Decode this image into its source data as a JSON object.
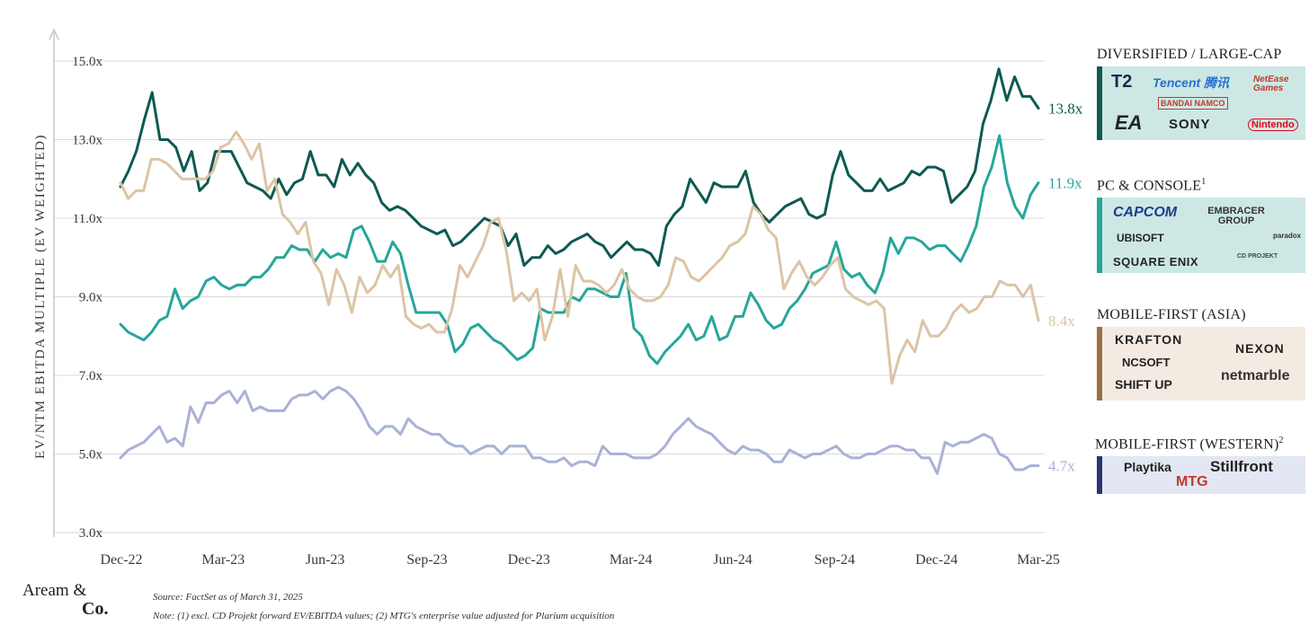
{
  "chart_data": {
    "type": "line",
    "title": "",
    "ylabel": "EV/NTM EBITDA MULTIPLE (EV WEIGHTED)",
    "xlabel": "",
    "ylim": [
      3.0,
      15.0
    ],
    "yticks": [
      "15.0x",
      "13.0x",
      "11.0x",
      "9.0x",
      "7.0x",
      "5.0x",
      "3.0x"
    ],
    "ytick_values": [
      15,
      13,
      11,
      9,
      7,
      5,
      3
    ],
    "xticks": [
      "Dec-22",
      "Mar-23",
      "Jun-23",
      "Sep-23",
      "Dec-23",
      "Mar-24",
      "Jun-24",
      "Sep-24",
      "Dec-24",
      "Mar-25"
    ],
    "grid": "horizontal",
    "series": [
      {
        "name": "DIVERSIFIED / LARGE-CAP",
        "color": "#0e5a52",
        "end_label": "13.8x",
        "values": [
          11.8,
          12.2,
          12.7,
          13.5,
          14.2,
          13.0,
          13.0,
          12.8,
          12.2,
          12.7,
          11.7,
          11.9,
          12.7,
          12.7,
          12.7,
          12.3,
          11.9,
          11.8,
          11.7,
          11.5,
          12.0,
          11.6,
          11.9,
          12.0,
          12.7,
          12.1,
          12.1,
          11.8,
          12.5,
          12.1,
          12.4,
          12.1,
          11.9,
          11.4,
          11.2,
          11.3,
          11.2,
          11.0,
          10.8,
          10.7,
          10.6,
          10.7,
          10.3,
          10.4,
          10.6,
          10.8,
          11.0,
          10.9,
          10.8,
          10.3,
          10.6,
          9.8,
          10.0,
          10.0,
          10.3,
          10.1,
          10.2,
          10.4,
          10.5,
          10.6,
          10.4,
          10.3,
          10.0,
          10.2,
          10.4,
          10.2,
          10.2,
          10.1,
          9.8,
          10.8,
          11.1,
          11.3,
          12.0,
          11.7,
          11.4,
          11.9,
          11.8,
          11.8,
          11.8,
          12.2,
          11.4,
          11.1,
          10.9,
          11.1,
          11.3,
          11.4,
          11.5,
          11.1,
          11.0,
          11.1,
          12.1,
          12.7,
          12.1,
          11.9,
          11.7,
          11.7,
          12.0,
          11.7,
          11.8,
          11.9,
          12.2,
          12.1,
          12.3,
          12.3,
          12.2,
          11.4,
          11.6,
          11.8,
          12.2,
          13.4,
          14.0,
          14.8,
          14.0,
          14.6,
          14.1,
          14.1,
          13.8
        ]
      },
      {
        "name": "PC & CONSOLE",
        "color": "#26a69a",
        "end_label": "11.9x",
        "values": [
          8.3,
          8.1,
          8.0,
          7.9,
          8.1,
          8.4,
          8.5,
          9.2,
          8.7,
          8.9,
          9.0,
          9.4,
          9.5,
          9.3,
          9.2,
          9.3,
          9.3,
          9.5,
          9.5,
          9.7,
          10.0,
          10.0,
          10.3,
          10.2,
          10.2,
          9.9,
          10.2,
          10.0,
          10.1,
          10.0,
          10.7,
          10.8,
          10.4,
          9.9,
          9.9,
          10.4,
          10.1,
          9.3,
          8.6,
          8.6,
          8.6,
          8.6,
          8.3,
          7.6,
          7.8,
          8.2,
          8.3,
          8.1,
          7.9,
          7.8,
          7.6,
          7.4,
          7.5,
          7.7,
          8.7,
          8.6,
          8.6,
          8.6,
          9.0,
          8.9,
          9.2,
          9.2,
          9.1,
          9.0,
          9.0,
          9.6,
          8.2,
          8.0,
          7.5,
          7.3,
          7.6,
          7.8,
          8.0,
          8.3,
          7.9,
          8.0,
          8.5,
          7.9,
          8.0,
          8.5,
          8.5,
          9.1,
          8.8,
          8.4,
          8.2,
          8.3,
          8.7,
          8.9,
          9.2,
          9.6,
          9.7,
          9.8,
          10.4,
          9.7,
          9.5,
          9.6,
          9.3,
          9.1,
          9.6,
          10.5,
          10.1,
          10.5,
          10.5,
          10.4,
          10.2,
          10.3,
          10.3,
          10.1,
          9.9,
          10.3,
          10.8,
          11.8,
          12.3,
          13.1,
          11.9,
          11.3,
          11.0,
          11.6,
          11.9
        ]
      },
      {
        "name": "MOBILE-FIRST (ASIA)",
        "color": "#dcc4a6",
        "end_label": "8.4x",
        "values": [
          11.9,
          11.5,
          11.7,
          11.7,
          12.5,
          12.5,
          12.4,
          12.2,
          12.0,
          12.0,
          12.0,
          12.0,
          12.2,
          12.8,
          12.9,
          13.2,
          12.9,
          12.5,
          12.9,
          11.7,
          12.0,
          11.1,
          10.9,
          10.6,
          10.9,
          9.9,
          9.6,
          8.8,
          9.7,
          9.3,
          8.6,
          9.5,
          9.1,
          9.3,
          9.8,
          9.5,
          9.8,
          8.5,
          8.3,
          8.2,
          8.3,
          8.1,
          8.1,
          8.7,
          9.8,
          9.5,
          9.9,
          10.3,
          10.9,
          11.0,
          10.2,
          8.9,
          9.1,
          8.9,
          9.2,
          7.9,
          8.5,
          9.7,
          8.5,
          9.8,
          9.4,
          9.4,
          9.3,
          9.1,
          9.3,
          9.7,
          9.2,
          9.0,
          8.9,
          8.9,
          9.0,
          9.3,
          10.0,
          9.9,
          9.5,
          9.4,
          9.6,
          9.8,
          10.0,
          10.3,
          10.4,
          10.6,
          11.3,
          11.1,
          10.7,
          10.5,
          9.2,
          9.6,
          9.9,
          9.5,
          9.3,
          9.5,
          9.8,
          10.0,
          9.2,
          9.0,
          8.9,
          8.8,
          8.9,
          8.7,
          6.8,
          7.5,
          7.9,
          7.6,
          8.4,
          8.0,
          8.0,
          8.2,
          8.6,
          8.8,
          8.6,
          8.7,
          9.0,
          9.0,
          9.4,
          9.3,
          9.3,
          9.0,
          9.3,
          8.4
        ]
      },
      {
        "name": "MOBILE-FIRST (WESTERN)",
        "color": "#a9b1d6",
        "end_label": "4.7x",
        "values": [
          4.9,
          5.1,
          5.2,
          5.3,
          5.5,
          5.7,
          5.3,
          5.4,
          5.2,
          6.2,
          5.8,
          6.3,
          6.3,
          6.5,
          6.6,
          6.3,
          6.6,
          6.1,
          6.2,
          6.1,
          6.1,
          6.1,
          6.4,
          6.5,
          6.5,
          6.6,
          6.4,
          6.6,
          6.7,
          6.6,
          6.4,
          6.1,
          5.7,
          5.5,
          5.7,
          5.7,
          5.5,
          5.9,
          5.7,
          5.6,
          5.5,
          5.5,
          5.3,
          5.2,
          5.2,
          5.0,
          5.1,
          5.2,
          5.2,
          5.0,
          5.2,
          5.2,
          5.2,
          4.9,
          4.9,
          4.8,
          4.8,
          4.9,
          4.7,
          4.8,
          4.8,
          4.7,
          5.2,
          5.0,
          5.0,
          5.0,
          4.9,
          4.9,
          4.9,
          5.0,
          5.2,
          5.5,
          5.7,
          5.9,
          5.7,
          5.6,
          5.5,
          5.3,
          5.1,
          5.0,
          5.2,
          5.1,
          5.1,
          5.0,
          4.8,
          4.8,
          5.1,
          5.0,
          4.9,
          5.0,
          5.0,
          5.1,
          5.2,
          5.0,
          4.9,
          4.9,
          5.0,
          5.0,
          5.1,
          5.2,
          5.2,
          5.1,
          5.1,
          4.9,
          4.9,
          4.5,
          5.3,
          5.2,
          5.3,
          5.3,
          5.4,
          5.5,
          5.4,
          5.0,
          4.9,
          4.6,
          4.6,
          4.7,
          4.7
        ]
      }
    ]
  },
  "panels": [
    {
      "title": "DIVERSIFIED / LARGE-CAP",
      "sup": "",
      "bg": "#cde8e4",
      "edge": "#0e5a52",
      "logos": [
        {
          "text": "T2",
          "color": "#1c2a4a",
          "size": 20
        },
        {
          "text": "Tencent 腾讯",
          "color": "#2a6fd1",
          "size": 14
        },
        {
          "text": "NetEase Games",
          "color": "#c0392b",
          "size": 10
        },
        {
          "text": "BANDAI NAMCO",
          "color": "#c0392b",
          "size": 9
        },
        {
          "text": "EA",
          "color": "#222222",
          "size": 22
        },
        {
          "text": "SONY",
          "color": "#222222",
          "size": 15
        },
        {
          "text": "Nintendo",
          "color": "#e3001b",
          "size": 11
        }
      ]
    },
    {
      "title": "PC & CONSOLE",
      "sup": "1",
      "bg": "#cde8e4",
      "edge": "#26a69a",
      "logos": [
        {
          "text": "CAPCOM",
          "color": "#1e3c8c",
          "size": 16
        },
        {
          "text": "EMBRACER GROUP",
          "color": "#333333",
          "size": 11
        },
        {
          "text": "paradox",
          "color": "#333333",
          "size": 8
        },
        {
          "text": "UBISOFT",
          "color": "#222222",
          "size": 12
        },
        {
          "text": "SQUARE ENIX",
          "color": "#222222",
          "size": 13
        },
        {
          "text": "CD PROJEKT",
          "color": "#444444",
          "size": 7
        }
      ]
    },
    {
      "title": "MOBILE-FIRST (ASIA)",
      "sup": "",
      "bg": "#f3ebe1",
      "edge": "#9b6f46",
      "logos": [
        {
          "text": "KRAFTON",
          "color": "#222222",
          "size": 14
        },
        {
          "text": "NEXON",
          "color": "#222222",
          "size": 14
        },
        {
          "text": "NCSOFT",
          "color": "#222222",
          "size": 13
        },
        {
          "text": "netmarble",
          "color": "#333333",
          "size": 16
        },
        {
          "text": "SHIFT UP",
          "color": "#222222",
          "size": 14
        }
      ]
    },
    {
      "title": "MOBILE-FIRST (WESTERN)",
      "sup": "2",
      "bg": "#e3e6f3",
      "edge": "#2a3670",
      "logos": [
        {
          "text": "Playtika",
          "color": "#222222",
          "size": 14
        },
        {
          "text": "Stillfront",
          "color": "#222222",
          "size": 17
        },
        {
          "text": "MTG",
          "color": "#c0392b",
          "size": 16
        }
      ]
    }
  ],
  "brand": {
    "line1": "Aream &",
    "line2": "Co."
  },
  "notes": {
    "source": "Source: FactSet as of March 31, 2025",
    "note": "Note: (1) excl. CD Projekt forward EV/EBITDA values; (2) MTG's enterprise value adjusted for Plarium acquisition"
  }
}
